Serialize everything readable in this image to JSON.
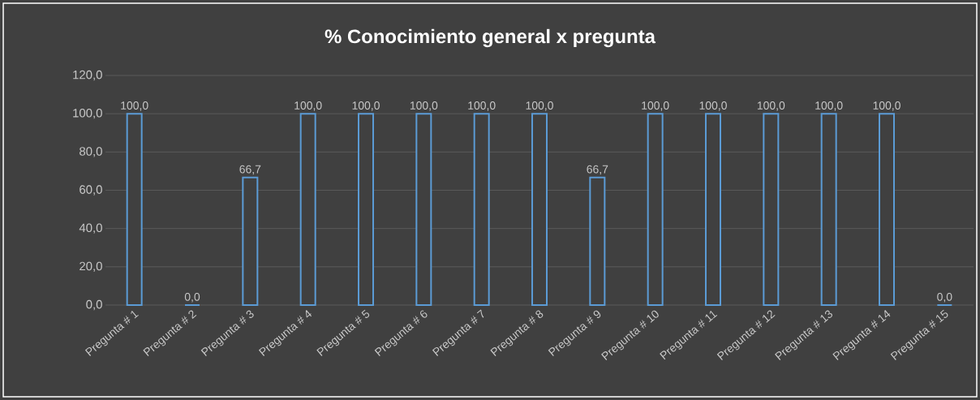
{
  "chart_data": {
    "type": "bar",
    "title": "% Conocimiento general x pregunta",
    "categories": [
      "Pregunta # 1",
      "Pregunta # 2",
      "Pregunta # 3",
      "Pregunta # 4",
      "Pregunta # 5",
      "Pregunta # 6",
      "Pregunta # 7",
      "Pregunta # 8",
      "Pregunta # 9",
      "Pregunta # 10",
      "Pregunta # 11",
      "Pregunta # 12",
      "Pregunta # 13",
      "Pregunta # 14",
      "Pregunta # 15"
    ],
    "values": [
      100,
      0,
      66.7,
      100,
      100,
      100,
      100,
      100,
      66.7,
      100,
      100,
      100,
      100,
      100,
      0
    ],
    "value_labels": [
      "100,0",
      "0,0",
      "66,7",
      "100,0",
      "100,0",
      "100,0",
      "100,0",
      "100,0",
      "66,7",
      "100,0",
      "100,0",
      "100,0",
      "100,0",
      "100,0",
      "0,0"
    ],
    "color": "#5b9bd5",
    "ylim": [
      0,
      120
    ],
    "yticks": [
      {
        "value": 0,
        "label": "0,0"
      },
      {
        "value": 20,
        "label": "20,0"
      },
      {
        "value": 40,
        "label": "40,0"
      },
      {
        "value": 60,
        "label": "60,0"
      },
      {
        "value": 80,
        "label": "80,0"
      },
      {
        "value": 100,
        "label": "100,0"
      },
      {
        "value": 120,
        "label": "120,0"
      }
    ],
    "grid": "y"
  }
}
